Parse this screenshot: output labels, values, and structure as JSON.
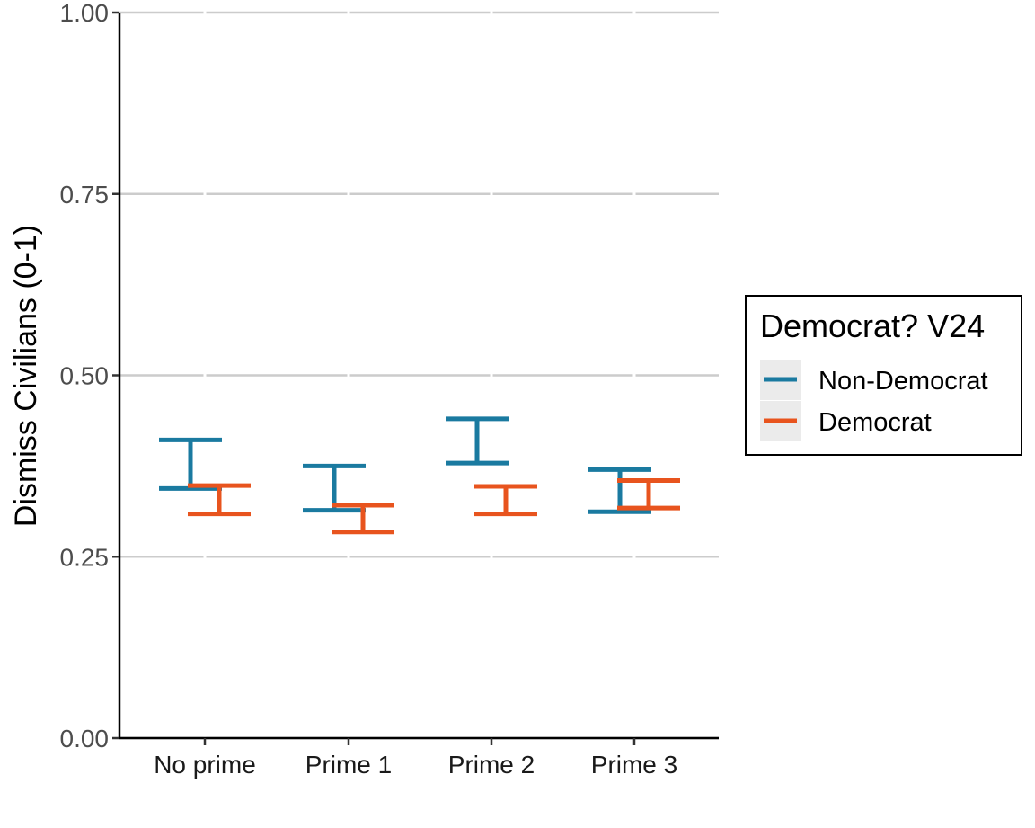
{
  "chart_data": {
    "type": "errorbar",
    "categories": [
      "No prime",
      "Prime 1",
      "Prime 2",
      "Prime 3"
    ],
    "series": [
      {
        "name": "Non-Democrat",
        "color": "#1a7aa0",
        "lower": [
          0.344,
          0.314,
          0.379,
          0.312
        ],
        "upper": [
          0.411,
          0.375,
          0.44,
          0.37
        ]
      },
      {
        "name": "Democrat",
        "color": "#e8541e",
        "lower": [
          0.309,
          0.284,
          0.309,
          0.317
        ],
        "upper": [
          0.348,
          0.321,
          0.347,
          0.355
        ]
      }
    ],
    "ylabel": "Dismiss Civilians (0-1)",
    "xlabel": "",
    "ylim": [
      0,
      1
    ],
    "yticks": [
      "0.00",
      "0.25",
      "0.50",
      "0.75",
      "1.00"
    ],
    "grid": "horizontal major",
    "legend": {
      "title": "Democrat? V24",
      "placement": "right"
    }
  }
}
